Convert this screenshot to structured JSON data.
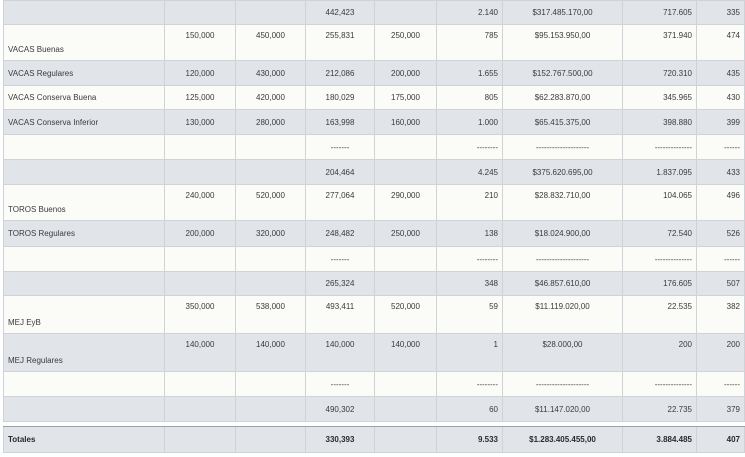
{
  "rows": [
    {
      "style": "gray",
      "h": 24,
      "label": "",
      "v1": "",
      "v2": "",
      "v3": "442,423",
      "v4": "",
      "v5": "2.140",
      "v6": "$317.485.170,00",
      "v7": "717.605",
      "v8": "335"
    },
    {
      "style": "white",
      "h": 36,
      "label": "VACAS Buenas",
      "v1": "150,000",
      "v2": "450,000",
      "v3": "255,831",
      "v4": "250,000",
      "v5": "785",
      "v6": "$95.153.950,00",
      "v7": "371.940",
      "v8": "474"
    },
    {
      "style": "gray",
      "h": 25,
      "label": "VACAS Regulares",
      "v1": "120,000",
      "v2": "430,000",
      "v3": "212,086",
      "v4": "200,000",
      "v5": "1.655",
      "v6": "$152.767.500,00",
      "v7": "720.310",
      "v8": "435"
    },
    {
      "style": "white",
      "h": 24,
      "label": "VACAS Conserva Buena",
      "v1": "125,000",
      "v2": "420,000",
      "v3": "180,029",
      "v4": "175,000",
      "v5": "805",
      "v6": "$62.283.870,00",
      "v7": "345.965",
      "v8": "430"
    },
    {
      "style": "gray",
      "h": 25,
      "label": "VACAS Conserva Inferior",
      "v1": "130,000",
      "v2": "280,000",
      "v3": "163,998",
      "v4": "160,000",
      "v5": "1.000",
      "v6": "$65.415.375,00",
      "v7": "398.880",
      "v8": "399"
    },
    {
      "style": "white",
      "h": 25,
      "label": "",
      "v1": "",
      "v2": "",
      "v3": "-------",
      "v4": "",
      "v5": "--------",
      "v6": "--------------------",
      "v7": "--------------",
      "v8": "------"
    },
    {
      "style": "gray",
      "h": 25,
      "label": "",
      "v1": "",
      "v2": "",
      "v3": "204,464",
      "v4": "",
      "v5": "4.245",
      "v6": "$375.620.695,00",
      "v7": "1.837.095",
      "v8": "433"
    },
    {
      "style": "white",
      "h": 36,
      "label": "TOROS Buenos",
      "v1": "240,000",
      "v2": "520,000",
      "v3": "277,064",
      "v4": "290,000",
      "v5": "210",
      "v6": "$28.832.710,00",
      "v7": "104.065",
      "v8": "496"
    },
    {
      "style": "gray",
      "h": 26,
      "label": "TOROS Regulares",
      "v1": "200,000",
      "v2": "320,000",
      "v3": "248,482",
      "v4": "250,000",
      "v5": "138",
      "v6": "$18.024.900,00",
      "v7": "72.540",
      "v8": "526"
    },
    {
      "style": "white",
      "h": 25,
      "label": "",
      "v1": "",
      "v2": "",
      "v3": "-------",
      "v4": "",
      "v5": "--------",
      "v6": "--------------------",
      "v7": "--------------",
      "v8": "------"
    },
    {
      "style": "gray",
      "h": 24,
      "label": "",
      "v1": "",
      "v2": "",
      "v3": "265,324",
      "v4": "",
      "v5": "348",
      "v6": "$46.857.610,00",
      "v7": "176.605",
      "v8": "507"
    },
    {
      "style": "white",
      "h": 38,
      "label": "MEJ EyB",
      "v1": "350,000",
      "v2": "538,000",
      "v3": "493,411",
      "v4": "520,000",
      "v5": "59",
      "v6": "$11.119.020,00",
      "v7": "22.535",
      "v8": "382"
    },
    {
      "style": "gray",
      "h": 38,
      "label": "MEJ Regulares",
      "v1": "140,000",
      "v2": "140,000",
      "v3": "140,000",
      "v4": "140,000",
      "v5": "1",
      "v6": "$28.000,00",
      "v7": "200",
      "v8": "200"
    },
    {
      "style": "white",
      "h": 25,
      "label": "",
      "v1": "",
      "v2": "",
      "v3": "-------",
      "v4": "",
      "v5": "--------",
      "v6": "--------------------",
      "v7": "--------------",
      "v8": "------"
    },
    {
      "style": "gray",
      "h": 25,
      "label": "",
      "v1": "",
      "v2": "",
      "v3": "490,302",
      "v4": "",
      "v5": "60",
      "v6": "$11.147.020,00",
      "v7": "22.735",
      "v8": "379"
    }
  ],
  "totals": {
    "label": "Totales",
    "v1": "",
    "v2": "",
    "v3": "330,393",
    "v4": "",
    "v5": "9.533",
    "v6": "$1.283.405.455,00",
    "v7": "3.884.485",
    "v8": "407"
  }
}
